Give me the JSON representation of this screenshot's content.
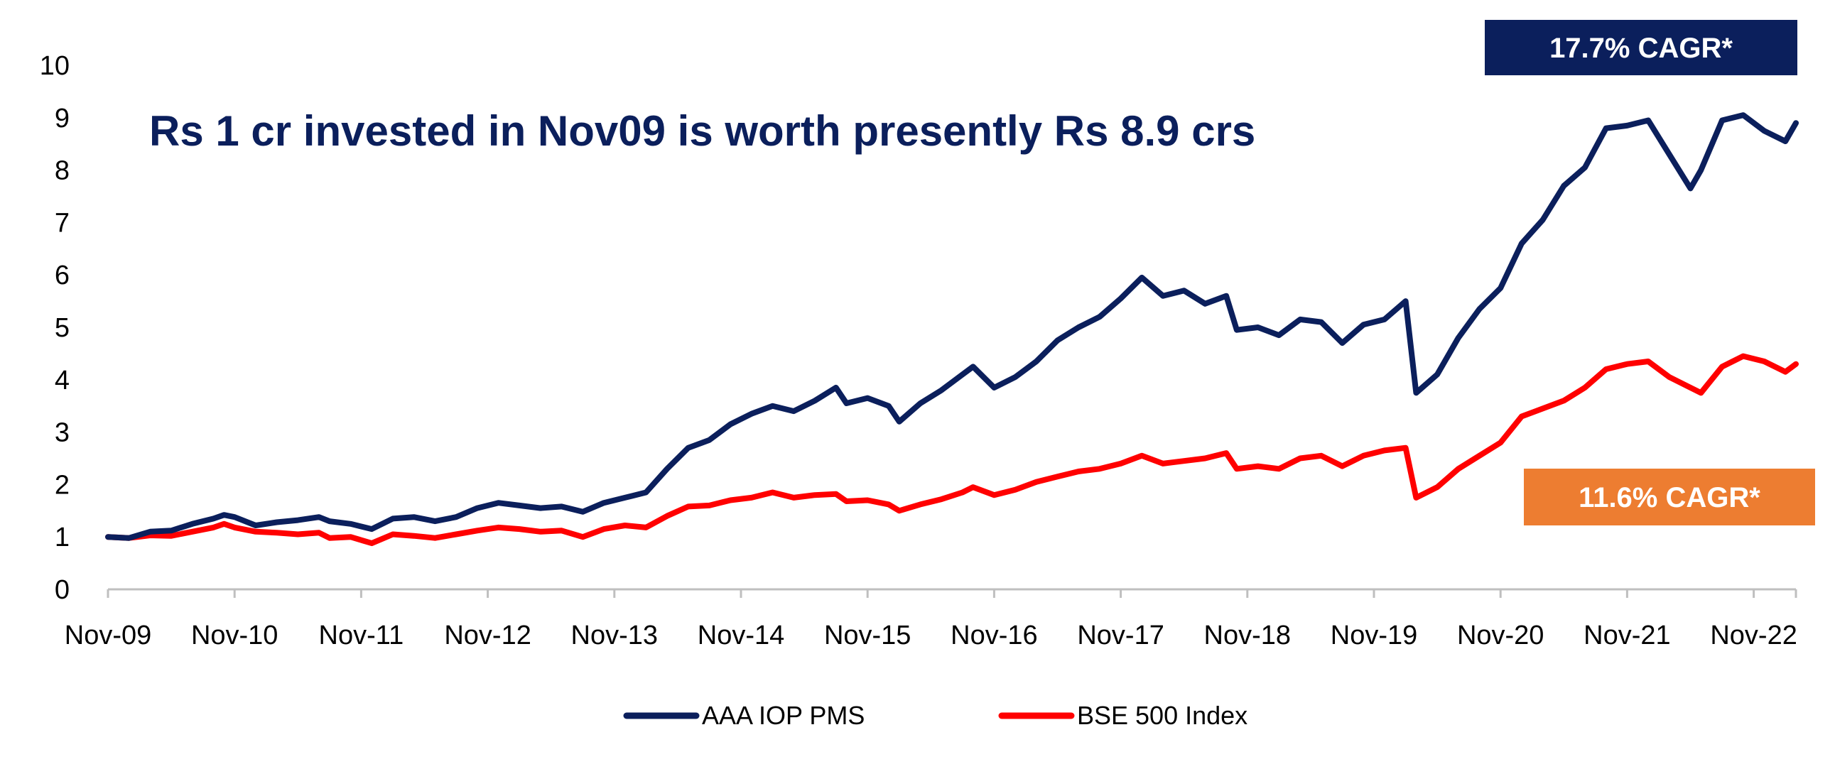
{
  "chart_data": {
    "type": "line",
    "title": "Rs 1 cr invested in Nov09 is worth presently Rs 8.9 crs",
    "xlabel": "",
    "ylabel": "",
    "ylim": [
      0,
      10
    ],
    "y_ticks": [
      "0",
      "1",
      "2",
      "3",
      "4",
      "5",
      "6",
      "7",
      "8",
      "9",
      "10"
    ],
    "x_ticks": [
      "Nov-09",
      "Nov-10",
      "Nov-11",
      "Nov-12",
      "Nov-13",
      "Nov-14",
      "Nov-15",
      "Nov-16",
      "Nov-17",
      "Nov-18",
      "Nov-19",
      "Nov-20",
      "Nov-21",
      "Nov-22"
    ],
    "legend_position": "bottom",
    "grid": false,
    "annotations": [
      {
        "text": "17.7% CAGR*",
        "series": "AAA IOP PMS",
        "color": "#0b1f5c"
      },
      {
        "text": "11.6% CAGR*",
        "series": "BSE 500 Index",
        "color": "#ed7d31"
      }
    ],
    "series": [
      {
        "name": "AAA IOP PMS",
        "color": "#0b1f5c",
        "points": [
          [
            "2009-11",
            1.0
          ],
          [
            "2010-01",
            0.98
          ],
          [
            "2010-03",
            1.1
          ],
          [
            "2010-05",
            1.12
          ],
          [
            "2010-07",
            1.25
          ],
          [
            "2010-09",
            1.35
          ],
          [
            "2010-10",
            1.42
          ],
          [
            "2010-11",
            1.38
          ],
          [
            "2011-01",
            1.22
          ],
          [
            "2011-03",
            1.28
          ],
          [
            "2011-05",
            1.32
          ],
          [
            "2011-07",
            1.38
          ],
          [
            "2011-08",
            1.3
          ],
          [
            "2011-10",
            1.25
          ],
          [
            "2011-12",
            1.15
          ],
          [
            "2012-02",
            1.35
          ],
          [
            "2012-04",
            1.38
          ],
          [
            "2012-06",
            1.3
          ],
          [
            "2012-08",
            1.38
          ],
          [
            "2012-10",
            1.55
          ],
          [
            "2012-12",
            1.65
          ],
          [
            "2013-02",
            1.6
          ],
          [
            "2013-04",
            1.55
          ],
          [
            "2013-06",
            1.58
          ],
          [
            "2013-08",
            1.48
          ],
          [
            "2013-10",
            1.65
          ],
          [
            "2013-12",
            1.75
          ],
          [
            "2014-02",
            1.85
          ],
          [
            "2014-04",
            2.3
          ],
          [
            "2014-06",
            2.7
          ],
          [
            "2014-08",
            2.85
          ],
          [
            "2014-10",
            3.15
          ],
          [
            "2014-12",
            3.35
          ],
          [
            "2015-02",
            3.5
          ],
          [
            "2015-04",
            3.4
          ],
          [
            "2015-06",
            3.6
          ],
          [
            "2015-08",
            3.85
          ],
          [
            "2015-09",
            3.55
          ],
          [
            "2015-11",
            3.65
          ],
          [
            "2016-01",
            3.5
          ],
          [
            "2016-02",
            3.2
          ],
          [
            "2016-04",
            3.55
          ],
          [
            "2016-06",
            3.8
          ],
          [
            "2016-08",
            4.1
          ],
          [
            "2016-09",
            4.25
          ],
          [
            "2016-11",
            3.85
          ],
          [
            "2017-01",
            4.05
          ],
          [
            "2017-03",
            4.35
          ],
          [
            "2017-05",
            4.75
          ],
          [
            "2017-07",
            5.0
          ],
          [
            "2017-09",
            5.2
          ],
          [
            "2017-11",
            5.55
          ],
          [
            "2018-01",
            5.95
          ],
          [
            "2018-03",
            5.6
          ],
          [
            "2018-05",
            5.7
          ],
          [
            "2018-07",
            5.45
          ],
          [
            "2018-09",
            5.6
          ],
          [
            "2018-10",
            4.95
          ],
          [
            "2018-12",
            5.0
          ],
          [
            "2019-02",
            4.85
          ],
          [
            "2019-04",
            5.15
          ],
          [
            "2019-06",
            5.1
          ],
          [
            "2019-08",
            4.7
          ],
          [
            "2019-10",
            5.05
          ],
          [
            "2019-12",
            5.15
          ],
          [
            "2020-02",
            5.5
          ],
          [
            "2020-03",
            3.75
          ],
          [
            "2020-05",
            4.1
          ],
          [
            "2020-07",
            4.8
          ],
          [
            "2020-09",
            5.35
          ],
          [
            "2020-11",
            5.75
          ],
          [
            "2021-01",
            6.6
          ],
          [
            "2021-03",
            7.05
          ],
          [
            "2021-05",
            7.7
          ],
          [
            "2021-07",
            8.05
          ],
          [
            "2021-09",
            8.8
          ],
          [
            "2021-11",
            8.85
          ],
          [
            "2022-01",
            8.95
          ],
          [
            "2022-03",
            8.3
          ],
          [
            "2022-05",
            7.65
          ],
          [
            "2022-06",
            8.0
          ],
          [
            "2022-08",
            8.95
          ],
          [
            "2022-10",
            9.05
          ],
          [
            "2022-12",
            8.75
          ],
          [
            "2023-02",
            8.55
          ],
          [
            "2023-03",
            8.9
          ]
        ]
      },
      {
        "name": "BSE 500 Index",
        "color": "#ff0000",
        "points": [
          [
            "2009-11",
            1.0
          ],
          [
            "2010-01",
            0.98
          ],
          [
            "2010-03",
            1.03
          ],
          [
            "2010-05",
            1.02
          ],
          [
            "2010-07",
            1.1
          ],
          [
            "2010-09",
            1.18
          ],
          [
            "2010-10",
            1.25
          ],
          [
            "2010-11",
            1.18
          ],
          [
            "2011-01",
            1.1
          ],
          [
            "2011-03",
            1.08
          ],
          [
            "2011-05",
            1.05
          ],
          [
            "2011-07",
            1.08
          ],
          [
            "2011-08",
            0.98
          ],
          [
            "2011-10",
            1.0
          ],
          [
            "2011-12",
            0.88
          ],
          [
            "2012-02",
            1.05
          ],
          [
            "2012-04",
            1.02
          ],
          [
            "2012-06",
            0.98
          ],
          [
            "2012-08",
            1.05
          ],
          [
            "2012-10",
            1.12
          ],
          [
            "2012-12",
            1.18
          ],
          [
            "2013-02",
            1.15
          ],
          [
            "2013-04",
            1.1
          ],
          [
            "2013-06",
            1.12
          ],
          [
            "2013-08",
            1.0
          ],
          [
            "2013-10",
            1.15
          ],
          [
            "2013-12",
            1.22
          ],
          [
            "2014-02",
            1.18
          ],
          [
            "2014-04",
            1.4
          ],
          [
            "2014-06",
            1.58
          ],
          [
            "2014-08",
            1.6
          ],
          [
            "2014-10",
            1.7
          ],
          [
            "2014-12",
            1.75
          ],
          [
            "2015-02",
            1.85
          ],
          [
            "2015-04",
            1.75
          ],
          [
            "2015-06",
            1.8
          ],
          [
            "2015-08",
            1.82
          ],
          [
            "2015-09",
            1.68
          ],
          [
            "2015-11",
            1.7
          ],
          [
            "2016-01",
            1.62
          ],
          [
            "2016-02",
            1.5
          ],
          [
            "2016-04",
            1.62
          ],
          [
            "2016-06",
            1.72
          ],
          [
            "2016-08",
            1.85
          ],
          [
            "2016-09",
            1.95
          ],
          [
            "2016-11",
            1.8
          ],
          [
            "2017-01",
            1.9
          ],
          [
            "2017-03",
            2.05
          ],
          [
            "2017-05",
            2.15
          ],
          [
            "2017-07",
            2.25
          ],
          [
            "2017-09",
            2.3
          ],
          [
            "2017-11",
            2.4
          ],
          [
            "2018-01",
            2.55
          ],
          [
            "2018-03",
            2.4
          ],
          [
            "2018-05",
            2.45
          ],
          [
            "2018-07",
            2.5
          ],
          [
            "2018-09",
            2.6
          ],
          [
            "2018-10",
            2.3
          ],
          [
            "2018-12",
            2.35
          ],
          [
            "2019-02",
            2.3
          ],
          [
            "2019-04",
            2.5
          ],
          [
            "2019-06",
            2.55
          ],
          [
            "2019-08",
            2.35
          ],
          [
            "2019-10",
            2.55
          ],
          [
            "2019-12",
            2.65
          ],
          [
            "2020-02",
            2.7
          ],
          [
            "2020-03",
            1.75
          ],
          [
            "2020-05",
            1.95
          ],
          [
            "2020-07",
            2.3
          ],
          [
            "2020-09",
            2.55
          ],
          [
            "2020-11",
            2.8
          ],
          [
            "2021-01",
            3.3
          ],
          [
            "2021-03",
            3.45
          ],
          [
            "2021-05",
            3.6
          ],
          [
            "2021-07",
            3.85
          ],
          [
            "2021-09",
            4.2
          ],
          [
            "2021-11",
            4.3
          ],
          [
            "2022-01",
            4.35
          ],
          [
            "2022-03",
            4.05
          ],
          [
            "2022-05",
            3.85
          ],
          [
            "2022-06",
            3.75
          ],
          [
            "2022-08",
            4.25
          ],
          [
            "2022-10",
            4.45
          ],
          [
            "2022-12",
            4.35
          ],
          [
            "2023-02",
            4.15
          ],
          [
            "2023-03",
            4.3
          ]
        ]
      }
    ]
  }
}
